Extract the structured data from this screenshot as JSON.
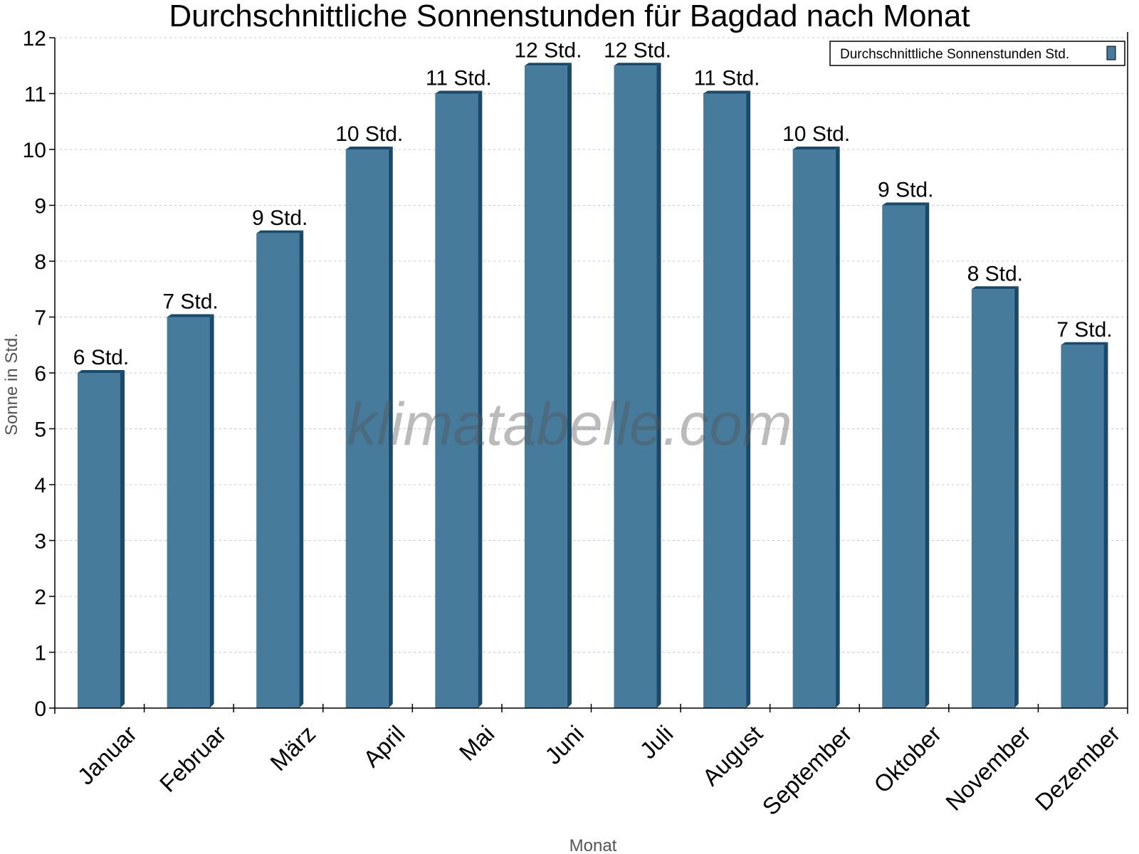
{
  "chart_data": {
    "type": "bar",
    "title": "Durchschnittliche Sonnenstunden für Bagdad nach Monat",
    "xlabel": "Monat",
    "ylabel": "Sonne in Std.",
    "ylim": [
      0,
      12
    ],
    "yticks": [
      "0",
      "1",
      "2",
      "3",
      "4",
      "5",
      "6",
      "7",
      "8",
      "9",
      "10",
      "11",
      "12"
    ],
    "grid": true,
    "legend_position": "top-right",
    "categories": [
      "Januar",
      "Februar",
      "März",
      "April",
      "Mai",
      "Juni",
      "Juli",
      "August",
      "September",
      "Oktober",
      "November",
      "Dezember"
    ],
    "series": [
      {
        "name": "Durchschnittliche Sonnenstunden Std.",
        "values": [
          6,
          7,
          8.5,
          10,
          11,
          11.5,
          11.5,
          11,
          10,
          9,
          7.5,
          6.5
        ],
        "labels": [
          "6 Std.",
          "7 Std.",
          "9 Std.",
          "10 Std.",
          "11 Std.",
          "12 Std.",
          "12 Std.",
          "11 Std.",
          "10 Std.",
          "9 Std.",
          "8 Std.",
          "7 Std."
        ],
        "color": "#467b9c",
        "side_color": "#1a4a6b"
      }
    ],
    "watermark": "klimatabelle.com"
  }
}
